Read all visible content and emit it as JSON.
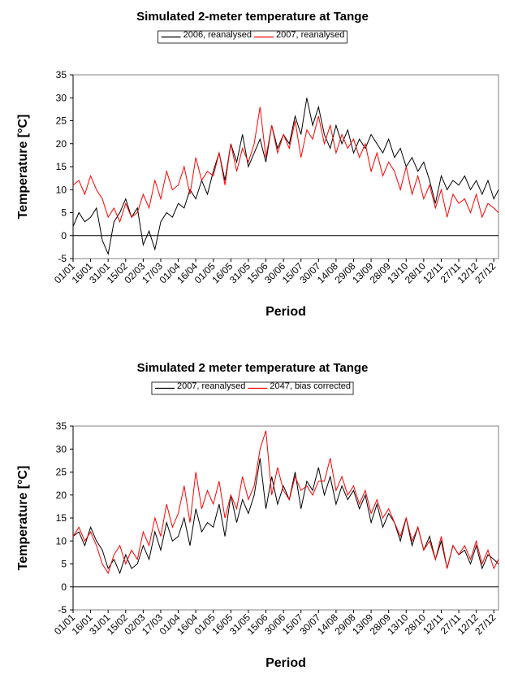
{
  "chart_data": [
    {
      "type": "line",
      "title": "Simulated 2-meter temperature at Tange",
      "x_label": "Period",
      "y_label": "Temperature [°C]",
      "x": [
        "01/01",
        "06/01",
        "11/01",
        "16/01",
        "21/01",
        "26/01",
        "31/01",
        "05/02",
        "10/02",
        "15/02",
        "20/02",
        "25/02",
        "02/03",
        "07/03",
        "12/03",
        "17/03",
        "22/03",
        "27/03",
        "01/04",
        "06/04",
        "11/04",
        "16/04",
        "21/04",
        "26/04",
        "01/05",
        "06/05",
        "11/05",
        "16/05",
        "21/05",
        "26/05",
        "31/05",
        "05/06",
        "10/06",
        "15/06",
        "20/06",
        "25/06",
        "30/06",
        "05/07",
        "10/07",
        "15/07",
        "20/07",
        "25/07",
        "30/07",
        "04/08",
        "09/08",
        "14/08",
        "19/08",
        "24/08",
        "29/08",
        "03/09",
        "08/09",
        "13/09",
        "18/09",
        "23/09",
        "28/09",
        "03/10",
        "08/10",
        "13/10",
        "18/10",
        "23/10",
        "28/10",
        "02/11",
        "07/11",
        "12/11",
        "17/11",
        "22/11",
        "27/11",
        "02/12",
        "07/12",
        "12/12",
        "17/12",
        "22/12",
        "27/12",
        "31/12"
      ],
      "series": [
        {
          "name": "2006, reanalysed",
          "color": "#000000",
          "values": [
            2,
            5,
            3,
            4,
            6,
            -1,
            -4,
            3,
            5,
            8,
            4,
            6,
            -2,
            1,
            -3,
            3,
            5,
            4,
            7,
            6,
            10,
            8,
            12,
            9,
            14,
            18,
            12,
            20,
            16,
            22,
            15,
            18,
            21,
            16,
            24,
            19,
            22,
            20,
            26,
            22,
            30,
            24,
            28,
            22,
            19,
            24,
            20,
            23,
            18,
            21,
            19,
            22,
            20,
            18,
            21,
            17,
            19,
            15,
            17,
            14,
            16,
            12,
            7,
            13,
            10,
            12,
            11,
            13,
            10,
            12,
            9,
            12,
            8,
            10
          ]
        },
        {
          "name": "2007, reanalysed",
          "color": "#ff0000",
          "values": [
            11,
            12,
            9,
            13,
            10,
            8,
            4,
            6,
            3,
            7,
            4,
            5,
            9,
            6,
            12,
            8,
            14,
            10,
            11,
            15,
            9,
            17,
            12,
            14,
            13,
            18,
            11,
            20,
            14,
            19,
            16,
            20,
            28,
            17,
            24,
            18,
            22,
            19,
            25,
            17,
            23,
            21,
            26,
            20,
            24,
            18,
            22,
            19,
            21,
            17,
            20,
            14,
            18,
            13,
            16,
            14,
            10,
            15,
            9,
            13,
            8,
            11,
            6,
            10,
            4,
            9,
            7,
            8,
            5,
            9,
            4,
            7,
            6,
            5
          ]
        }
      ],
      "xlim": [
        "01/01",
        "31/12"
      ],
      "xticks": [
        "01/01",
        "16/01",
        "31/01",
        "15/02",
        "02/03",
        "17/03",
        "01/04",
        "16/04",
        "01/05",
        "16/05",
        "31/05",
        "15/06",
        "30/06",
        "15/07",
        "30/07",
        "14/08",
        "29/08",
        "13/09",
        "28/09",
        "13/10",
        "28/10",
        "12/11",
        "27/11",
        "12/12",
        "27/12"
      ],
      "ylim": [
        -5,
        35
      ],
      "yticks": [
        -5,
        0,
        5,
        10,
        15,
        20,
        25,
        30,
        35
      ],
      "grid": false
    },
    {
      "type": "line",
      "title": "Simulated 2 meter temperature at Tange",
      "x_label": "Period",
      "y_label": "Temperature [°C]",
      "x": [
        "01/01",
        "06/01",
        "11/01",
        "16/01",
        "21/01",
        "26/01",
        "31/01",
        "05/02",
        "10/02",
        "15/02",
        "20/02",
        "25/02",
        "02/03",
        "07/03",
        "12/03",
        "17/03",
        "22/03",
        "27/03",
        "01/04",
        "06/04",
        "11/04",
        "16/04",
        "21/04",
        "26/04",
        "01/05",
        "06/05",
        "11/05",
        "16/05",
        "21/05",
        "26/05",
        "31/05",
        "05/06",
        "10/06",
        "15/06",
        "20/06",
        "25/06",
        "30/06",
        "05/07",
        "10/07",
        "15/07",
        "20/07",
        "25/07",
        "30/07",
        "04/08",
        "09/08",
        "14/08",
        "19/08",
        "24/08",
        "29/08",
        "03/09",
        "08/09",
        "13/09",
        "18/09",
        "23/09",
        "28/09",
        "03/10",
        "08/10",
        "13/10",
        "18/10",
        "23/10",
        "28/10",
        "02/11",
        "07/11",
        "12/11",
        "17/11",
        "22/11",
        "27/11",
        "02/12",
        "07/12",
        "12/12",
        "17/12",
        "22/12",
        "27/12",
        "31/12"
      ],
      "series": [
        {
          "name": "2007, reanalysed",
          "color": "#000000",
          "values": [
            11,
            12,
            9,
            13,
            10,
            8,
            4,
            6,
            3,
            7,
            4,
            5,
            9,
            6,
            12,
            8,
            14,
            10,
            11,
            15,
            9,
            17,
            12,
            14,
            13,
            18,
            11,
            20,
            14,
            19,
            16,
            20,
            28,
            17,
            24,
            18,
            22,
            19,
            25,
            17,
            23,
            21,
            26,
            20,
            24,
            18,
            22,
            19,
            21,
            17,
            20,
            14,
            18,
            13,
            16,
            14,
            10,
            15,
            9,
            13,
            8,
            11,
            6,
            10,
            4,
            9,
            7,
            8,
            5,
            9,
            4,
            7,
            6,
            5
          ]
        },
        {
          "name": "2047, bias corrected",
          "color": "#ff0000",
          "values": [
            11,
            13,
            10,
            12,
            9,
            5,
            3,
            7,
            9,
            5,
            8,
            6,
            12,
            9,
            15,
            11,
            18,
            13,
            16,
            22,
            14,
            25,
            17,
            21,
            18,
            23,
            15,
            20,
            17,
            24,
            19,
            22,
            30,
            34,
            20,
            26,
            21,
            19,
            24,
            21,
            22,
            20,
            23,
            23,
            28,
            21,
            24,
            20,
            22,
            18,
            21,
            16,
            19,
            15,
            17,
            14,
            11,
            15,
            10,
            13,
            8,
            10,
            6,
            11,
            4,
            9,
            7,
            9,
            6,
            10,
            5,
            8,
            4,
            6
          ]
        }
      ],
      "xlim": [
        "01/01",
        "31/12"
      ],
      "xticks": [
        "01/01",
        "16/01",
        "31/01",
        "15/02",
        "02/03",
        "17/03",
        "01/04",
        "16/04",
        "01/05",
        "16/05",
        "31/05",
        "15/06",
        "30/06",
        "15/07",
        "30/07",
        "14/08",
        "29/08",
        "13/09",
        "28/09",
        "13/10",
        "28/10",
        "12/11",
        "27/11",
        "12/12",
        "27/12"
      ],
      "ylim": [
        -5,
        35
      ],
      "yticks": [
        -5,
        0,
        5,
        10,
        15,
        20,
        25,
        30,
        35
      ],
      "grid": false
    }
  ]
}
